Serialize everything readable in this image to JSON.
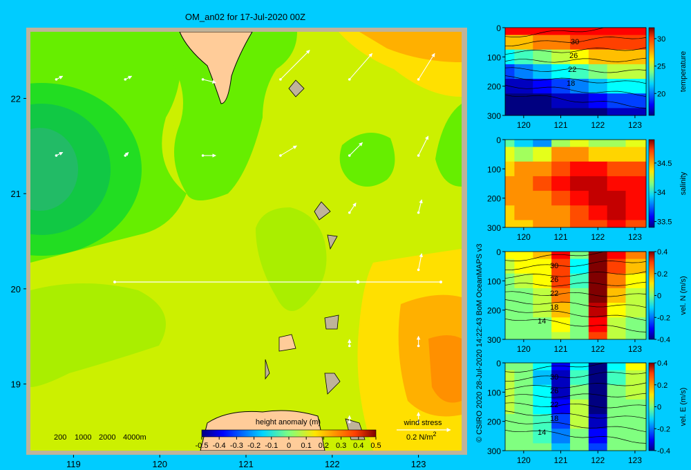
{
  "background_color": "#00ccff",
  "map": {
    "title": "OM_an02 for 17-Jul-2020 00Z",
    "x_ticks": [
      "119",
      "120",
      "121",
      "122",
      "123"
    ],
    "y_ticks": [
      "22",
      "21",
      "20",
      "19"
    ],
    "depth_legend": [
      "200",
      "1000",
      "2000",
      "4000m"
    ],
    "colorbar_title": "height anomaly (m)",
    "colorbar_ticks": [
      "-0.5",
      "-0.4",
      "-0.3",
      "-0.2",
      "-0.1",
      "0",
      "0.1",
      "0.2",
      "0.3",
      "0.4",
      "0.5"
    ],
    "wind_label": "wind stress",
    "wind_scale_label": "0.2 N/m",
    "wind_scale_exp": "2",
    "section_line_color": "#ffffff",
    "land_color": "#ffcc99",
    "shelf_color": "#bfb39a"
  },
  "panels": [
    {
      "variable": "temperature",
      "y_ticks": [
        "0",
        "100",
        "200",
        "300"
      ],
      "x_ticks": [
        "120",
        "121",
        "122",
        "123"
      ],
      "cbar_ticks": [
        "30",
        "25",
        "20"
      ],
      "contour_labels": [
        "30",
        "26",
        "22",
        "18"
      ]
    },
    {
      "variable": "salinity",
      "y_ticks": [
        "0",
        "100",
        "200",
        "300"
      ],
      "x_ticks": [
        "120",
        "121",
        "122",
        "123"
      ],
      "cbar_ticks": [
        "34.5",
        "34",
        "33.5"
      ],
      "contour_labels": []
    },
    {
      "variable": "vel. N (m/s)",
      "y_ticks": [
        "0",
        "100",
        "200",
        "300"
      ],
      "x_ticks": [
        "120",
        "121",
        "122",
        "123"
      ],
      "cbar_ticks": [
        "0.4",
        "0.2",
        "0",
        "-0.2",
        "-0.4"
      ],
      "contour_labels": [
        "30",
        "26",
        "22",
        "18",
        "14"
      ]
    },
    {
      "variable": "vel. E (m/s)",
      "y_ticks": [
        "0",
        "100",
        "200",
        "300"
      ],
      "x_ticks": [
        "120",
        "121",
        "122",
        "123"
      ],
      "cbar_ticks": [
        "0.4",
        "0.2",
        "0",
        "-0.2",
        "-0.4"
      ],
      "contour_labels": [
        "30",
        "26",
        "22",
        "18",
        "14"
      ]
    }
  ],
  "credit": "© CSIRO 2020   28-Jul-2020 14:22:43 BoM OceanMAPS v3",
  "chart_data": [
    {
      "type": "heatmap",
      "title": "OM_an02 for 17-Jul-2020 00Z",
      "variable": "height anomaly (m)",
      "xlim": [
        118.5,
        123.5
      ],
      "ylim": [
        18.3,
        22.7
      ],
      "clim": [
        -0.5,
        0.5
      ],
      "section_line": {
        "lon": [
          119.5,
          123.2
        ],
        "lat": [
          20.0,
          20.0
        ]
      },
      "field_samples": [
        {
          "lon": 118.8,
          "lat": 21.3,
          "value": -0.1
        },
        {
          "lon": 119.3,
          "lat": 22.0,
          "value": -0.05
        },
        {
          "lon": 120.0,
          "lat": 21.0,
          "value": 0.0
        },
        {
          "lon": 121.0,
          "lat": 20.5,
          "value": 0.05
        },
        {
          "lon": 121.5,
          "lat": 19.5,
          "value": 0.1
        },
        {
          "lon": 122.2,
          "lat": 22.0,
          "value": 0.15
        },
        {
          "lon": 122.3,
          "lat": 21.2,
          "value": 0.0
        },
        {
          "lon": 123.0,
          "lat": 22.4,
          "value": 0.3
        },
        {
          "lon": 123.2,
          "lat": 19.3,
          "value": 0.35
        }
      ],
      "wind_vectors": [
        {
          "lon": 118.8,
          "lat": 22.2,
          "u": 0.02,
          "v": 0.01
        },
        {
          "lon": 119.6,
          "lat": 22.2,
          "u": 0.02,
          "v": 0.01
        },
        {
          "lon": 120.5,
          "lat": 22.2,
          "u": 0.04,
          "v": -0.01
        },
        {
          "lon": 121.4,
          "lat": 22.2,
          "u": 0.09,
          "v": 0.09
        },
        {
          "lon": 122.2,
          "lat": 22.2,
          "u": 0.07,
          "v": 0.08
        },
        {
          "lon": 123.0,
          "lat": 22.2,
          "u": 0.05,
          "v": 0.08
        },
        {
          "lon": 118.8,
          "lat": 21.4,
          "u": 0.02,
          "v": 0.01
        },
        {
          "lon": 119.6,
          "lat": 21.4,
          "u": 0.01,
          "v": 0.01
        },
        {
          "lon": 120.5,
          "lat": 21.4,
          "u": 0.04,
          "v": 0.0
        },
        {
          "lon": 121.4,
          "lat": 21.4,
          "u": 0.05,
          "v": 0.03
        },
        {
          "lon": 122.2,
          "lat": 21.4,
          "u": 0.04,
          "v": 0.04
        },
        {
          "lon": 123.0,
          "lat": 21.4,
          "u": 0.03,
          "v": 0.06
        },
        {
          "lon": 122.2,
          "lat": 20.8,
          "u": 0.02,
          "v": 0.03
        },
        {
          "lon": 123.0,
          "lat": 20.8,
          "u": 0.01,
          "v": 0.04
        },
        {
          "lon": 123.0,
          "lat": 20.2,
          "u": 0.01,
          "v": 0.05
        },
        {
          "lon": 122.2,
          "lat": 19.4,
          "u": 0.0,
          "v": 0.02
        },
        {
          "lon": 123.0,
          "lat": 19.4,
          "u": 0.0,
          "v": 0.03
        },
        {
          "lon": 122.2,
          "lat": 18.6,
          "u": 0.0,
          "v": 0.02
        },
        {
          "lon": 123.0,
          "lat": 18.6,
          "u": 0.0,
          "v": 0.03
        }
      ]
    },
    {
      "type": "heatmap",
      "variable": "temperature",
      "xlim": [
        119.5,
        123.3
      ],
      "ylim": [
        0,
        300
      ],
      "clim": [
        16,
        32
      ],
      "x": [
        119.5,
        120,
        120.5,
        121,
        121.5,
        122,
        122.5,
        123
      ],
      "depth": [
        0,
        50,
        100,
        150,
        200,
        250,
        300
      ],
      "values": [
        [
          30,
          30,
          30,
          30,
          30,
          30,
          30,
          30
        ],
        [
          27,
          27,
          28,
          28,
          29,
          29,
          29,
          29
        ],
        [
          22,
          23,
          24,
          25,
          26,
          27,
          27,
          27
        ],
        [
          19,
          20,
          21,
          22,
          23,
          24,
          25,
          25
        ],
        [
          17,
          17,
          18,
          19,
          20,
          21,
          22,
          22
        ],
        [
          16,
          16,
          16,
          17,
          17,
          18,
          19,
          19
        ],
        [
          16,
          16,
          16,
          16,
          16,
          16,
          17,
          17
        ]
      ]
    },
    {
      "type": "heatmap",
      "variable": "salinity",
      "xlim": [
        119.5,
        123.3
      ],
      "ylim": [
        0,
        300
      ],
      "clim": [
        33.4,
        34.9
      ],
      "x": [
        119.5,
        120,
        120.5,
        121,
        121.5,
        122,
        122.5,
        123
      ],
      "depth": [
        0,
        50,
        100,
        150,
        200,
        250,
        300
      ],
      "values": [
        [
          34.1,
          33.9,
          33.8,
          34.2,
          34.3,
          34.2,
          34.2,
          34.3
        ],
        [
          34.3,
          34.2,
          34.3,
          34.5,
          34.5,
          34.4,
          34.4,
          34.4
        ],
        [
          34.4,
          34.5,
          34.5,
          34.6,
          34.7,
          34.7,
          34.6,
          34.6
        ],
        [
          34.5,
          34.5,
          34.6,
          34.7,
          34.8,
          34.8,
          34.7,
          34.7
        ],
        [
          34.5,
          34.5,
          34.5,
          34.6,
          34.7,
          34.8,
          34.8,
          34.7
        ],
        [
          34.4,
          34.5,
          34.5,
          34.5,
          34.6,
          34.7,
          34.8,
          34.7
        ],
        [
          34.4,
          34.4,
          34.5,
          34.5,
          34.6,
          34.6,
          34.7,
          34.6
        ]
      ]
    },
    {
      "type": "heatmap",
      "variable": "vel. N (m/s)",
      "xlim": [
        119.5,
        123.3
      ],
      "ylim": [
        0,
        300
      ],
      "clim": [
        -0.4,
        0.4
      ],
      "x": [
        119.5,
        120,
        120.5,
        121,
        121.5,
        122,
        122.5,
        123
      ],
      "depth": [
        0,
        50,
        100,
        150,
        200,
        250,
        300
      ],
      "values": [
        [
          0.1,
          0.1,
          0.15,
          0.3,
          0.0,
          0.5,
          0.3,
          0.2
        ],
        [
          0.05,
          0.1,
          0.1,
          0.25,
          -0.1,
          0.5,
          0.25,
          0.15
        ],
        [
          0.0,
          0.05,
          0.1,
          0.25,
          -0.05,
          0.45,
          0.2,
          0.1
        ],
        [
          0.0,
          0.0,
          0.05,
          0.2,
          0.0,
          0.4,
          0.15,
          0.05
        ],
        [
          0.0,
          0.0,
          0.05,
          0.15,
          0.0,
          0.35,
          0.1,
          0.05
        ],
        [
          0.0,
          0.0,
          0.0,
          0.1,
          0.0,
          0.3,
          0.05,
          0.0
        ],
        [
          0.0,
          0.0,
          0.0,
          0.05,
          0.0,
          0.25,
          0.05,
          0.0
        ]
      ]
    },
    {
      "type": "heatmap",
      "variable": "vel. E (m/s)",
      "xlim": [
        119.5,
        123.3
      ],
      "ylim": [
        0,
        300
      ],
      "clim": [
        -0.4,
        0.4
      ],
      "x": [
        119.5,
        120,
        120.5,
        121,
        121.5,
        122,
        122.5,
        123
      ],
      "depth": [
        0,
        50,
        100,
        150,
        200,
        250,
        300
      ],
      "values": [
        [
          0.0,
          0.0,
          -0.1,
          -0.3,
          -0.1,
          -0.5,
          -0.1,
          0.1
        ],
        [
          0.05,
          0.0,
          -0.15,
          -0.35,
          -0.05,
          -0.5,
          -0.05,
          0.05
        ],
        [
          0.05,
          0.0,
          -0.1,
          -0.35,
          0.0,
          -0.45,
          0.0,
          0.05
        ],
        [
          0.05,
          0.0,
          -0.1,
          -0.3,
          0.05,
          -0.4,
          0.0,
          0.0
        ],
        [
          0.0,
          0.0,
          -0.05,
          -0.25,
          0.05,
          -0.35,
          0.0,
          0.0
        ],
        [
          0.0,
          0.0,
          -0.05,
          -0.2,
          0.0,
          -0.3,
          0.0,
          0.0
        ],
        [
          0.0,
          0.0,
          0.0,
          -0.15,
          0.0,
          -0.25,
          0.0,
          0.0
        ]
      ]
    }
  ]
}
